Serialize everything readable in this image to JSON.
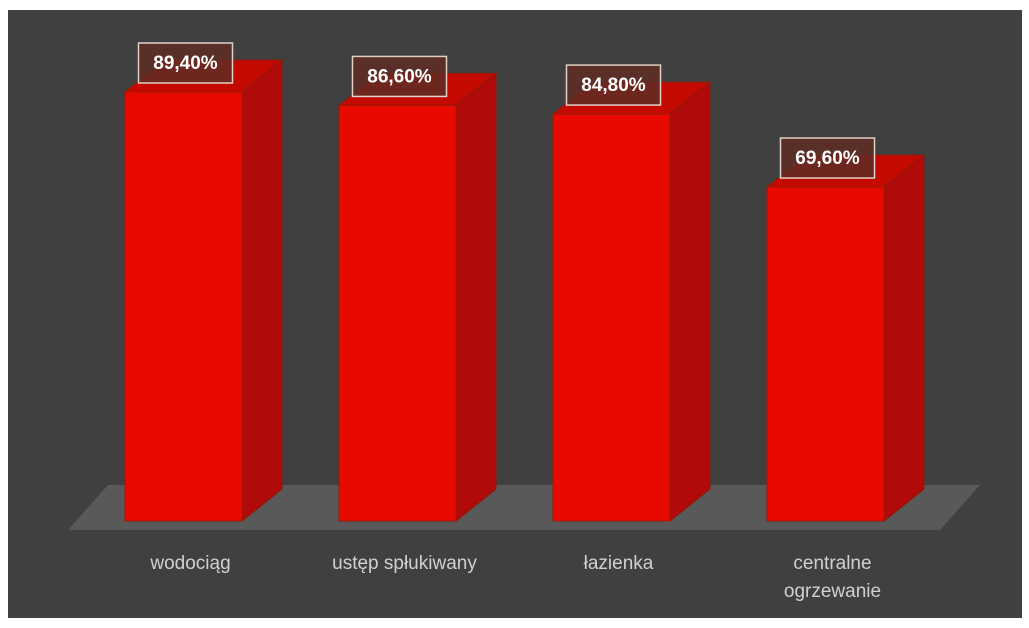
{
  "chart_data": {
    "type": "bar3d",
    "categories": [
      "wodociąg",
      "ustęp spłukiwany",
      "łazienka",
      "centralne ogrzewanie"
    ],
    "values": [
      89.4,
      86.6,
      84.8,
      69.6
    ],
    "value_labels": [
      "89,40%",
      "86,60%",
      "84,80%",
      "69,60%"
    ],
    "color": "#e80a00"
  }
}
